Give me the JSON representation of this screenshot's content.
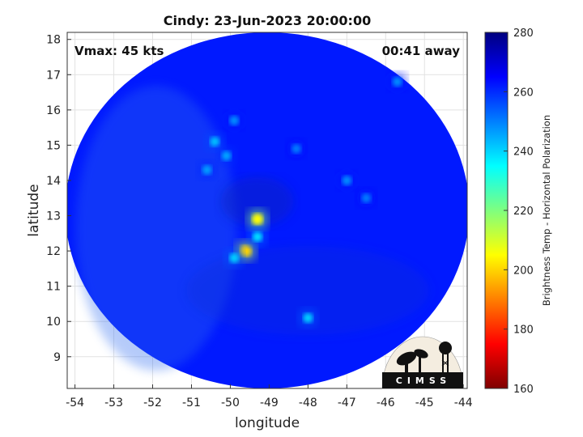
{
  "chart_data": {
    "type": "heatmap",
    "title": "Cindy: 23-Jun-2023 20:00:00",
    "xlabel": "longitude",
    "ylabel": "latitude",
    "xlim": [
      -54.2,
      -43.9
    ],
    "ylim": [
      8.1,
      18.2
    ],
    "x_ticks": [
      -54,
      -53,
      -52,
      -51,
      -50,
      -49,
      -48,
      -47,
      -46,
      -45,
      -44
    ],
    "y_ticks": [
      9,
      10,
      11,
      12,
      13,
      14,
      15,
      16,
      17,
      18
    ],
    "grid": true,
    "annotations": {
      "vmax": "Vmax: 45 kts",
      "time_offset": "00:41 away"
    },
    "colorbar": {
      "label": "Brightness Temp - Horizontal Polarization",
      "range": [
        160,
        280
      ],
      "ticks": [
        160,
        180,
        200,
        220,
        240,
        260,
        280
      ],
      "colormap": [
        "#7f0000",
        "#ff0000",
        "#ff7f00",
        "#ffff00",
        "#7fff7f",
        "#00ffff",
        "#007fff",
        "#0000ff",
        "#00007f"
      ]
    },
    "swath": {
      "center_lon": -49.05,
      "center_lat": 13.15,
      "radius_deg_lon": 5.2,
      "radius_deg_lat": 5.05,
      "background_value": 262
    },
    "features": [
      {
        "lon": -49.3,
        "lat": 12.9,
        "value": 205
      },
      {
        "lon": -49.6,
        "lat": 12.0,
        "value": 200
      },
      {
        "lon": -49.9,
        "lat": 11.8,
        "value": 240
      },
      {
        "lon": -49.3,
        "lat": 12.4,
        "value": 238
      },
      {
        "lon": -50.4,
        "lat": 15.1,
        "value": 242
      },
      {
        "lon": -50.1,
        "lat": 14.7,
        "value": 245
      },
      {
        "lon": -50.6,
        "lat": 14.3,
        "value": 246
      },
      {
        "lon": -49.9,
        "lat": 15.7,
        "value": 248
      },
      {
        "lon": -48.3,
        "lat": 14.9,
        "value": 250
      },
      {
        "lon": -47.0,
        "lat": 14.0,
        "value": 248
      },
      {
        "lon": -46.5,
        "lat": 13.5,
        "value": 250
      },
      {
        "lon": -45.7,
        "lat": 16.8,
        "value": 248
      },
      {
        "lon": -48.0,
        "lat": 10.1,
        "value": 240
      }
    ]
  },
  "logo": {
    "text": "CIMSS"
  }
}
